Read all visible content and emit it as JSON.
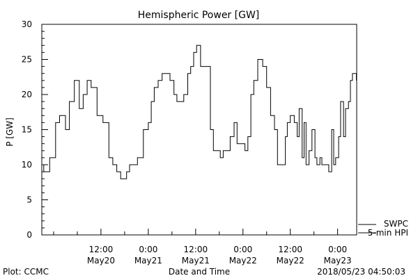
{
  "footer": {
    "plot_credit": "Plot: CCMC",
    "timestamp": "2018/05/23 04:50:03"
  },
  "legend": {
    "source": "SWPC",
    "series": "5-min HPI"
  },
  "colors": {
    "background": "#ffffff",
    "line": "#000000"
  },
  "chart_data": {
    "type": "line",
    "title": "Hemispheric Power [GW]",
    "xlabel": "Date and Time",
    "ylabel": "P [GW]",
    "grid": false,
    "legend_position": "bottom-right",
    "xlim": [
      "2018-05-19 21:00",
      "2018-05-23 04:50"
    ],
    "ylim": [
      0,
      30
    ],
    "y_major_ticks": [
      0,
      5,
      10,
      15,
      20,
      25,
      30
    ],
    "y_minor_step": 1,
    "x_tick_labels": [
      {
        "time": "2018-05-20 12:00",
        "line1": "12:00",
        "line2": "May20"
      },
      {
        "time": "2018-05-21 00:00",
        "line1": "0:00",
        "line2": "May21"
      },
      {
        "time": "2018-05-21 12:00",
        "line1": "12:00",
        "line2": "May21"
      },
      {
        "time": "2018-05-22 00:00",
        "line1": "0:00",
        "line2": "May22"
      },
      {
        "time": "2018-05-22 12:00",
        "line1": "12:00",
        "line2": "May22"
      },
      {
        "time": "2018-05-23 00:00",
        "line1": "0:00",
        "line2": "May23"
      }
    ],
    "x_minor_ticks": [
      "2018-05-20 00:00",
      "2018-05-20 06:00",
      "2018-05-20 18:00",
      "2018-05-21 06:00",
      "2018-05-21 18:00",
      "2018-05-22 06:00",
      "2018-05-22 18:00",
      "2018-05-23 06:00"
    ],
    "series": [
      {
        "name": "5-min HPI",
        "color": "#000000",
        "x": [
          "2018-05-19 21:00",
          "2018-05-19 21:30",
          "2018-05-19 22:00",
          "2018-05-19 23:00",
          "2018-05-20 00:30",
          "2018-05-20 01:30",
          "2018-05-20 03:00",
          "2018-05-20 04:00",
          "2018-05-20 05:15",
          "2018-05-20 06:30",
          "2018-05-20 07:30",
          "2018-05-20 08:30",
          "2018-05-20 09:30",
          "2018-05-20 11:00",
          "2018-05-20 12:30",
          "2018-05-20 14:00",
          "2018-05-20 15:00",
          "2018-05-20 16:00",
          "2018-05-20 17:00",
          "2018-05-20 18:00",
          "2018-05-20 18:30",
          "2018-05-20 19:15",
          "2018-05-20 20:00",
          "2018-05-20 21:15",
          "2018-05-20 22:45",
          "2018-05-21 00:00",
          "2018-05-21 00:45",
          "2018-05-21 01:30",
          "2018-05-21 02:30",
          "2018-05-21 03:30",
          "2018-05-21 04:30",
          "2018-05-21 05:30",
          "2018-05-21 06:30",
          "2018-05-21 07:15",
          "2018-05-21 08:00",
          "2018-05-21 09:00",
          "2018-05-21 10:00",
          "2018-05-21 10:45",
          "2018-05-21 11:30",
          "2018-05-21 12:15",
          "2018-05-21 13:15",
          "2018-05-21 14:15",
          "2018-05-21 15:00",
          "2018-05-21 15:45",
          "2018-05-21 16:30",
          "2018-05-21 17:30",
          "2018-05-21 18:15",
          "2018-05-21 19:00",
          "2018-05-21 20:00",
          "2018-05-21 20:45",
          "2018-05-21 21:45",
          "2018-05-21 22:30",
          "2018-05-21 23:00",
          "2018-05-21 23:45",
          "2018-05-22 00:30",
          "2018-05-22 01:15",
          "2018-05-22 02:00",
          "2018-05-22 02:45",
          "2018-05-22 03:45",
          "2018-05-22 05:00",
          "2018-05-22 06:00",
          "2018-05-22 07:00",
          "2018-05-22 08:00",
          "2018-05-22 08:45",
          "2018-05-22 09:45",
          "2018-05-22 10:45",
          "2018-05-22 11:15",
          "2018-05-22 12:00",
          "2018-05-22 13:00",
          "2018-05-22 13:45",
          "2018-05-22 14:15",
          "2018-05-22 15:00",
          "2018-05-22 15:30",
          "2018-05-22 16:00",
          "2018-05-22 16:45",
          "2018-05-22 17:30",
          "2018-05-22 18:15",
          "2018-05-22 18:45",
          "2018-05-22 19:30",
          "2018-05-22 20:00",
          "2018-05-22 21:00",
          "2018-05-22 21:45",
          "2018-05-22 22:30",
          "2018-05-22 23:00",
          "2018-05-22 23:30",
          "2018-05-23 00:15",
          "2018-05-23 00:45",
          "2018-05-23 01:30",
          "2018-05-23 02:00",
          "2018-05-23 02:45",
          "2018-05-23 03:15",
          "2018-05-23 03:45",
          "2018-05-23 04:20",
          "2018-05-23 04:45"
        ],
        "values": [
          10,
          9,
          9,
          11,
          16,
          17,
          15,
          19,
          22,
          18,
          20,
          22,
          21,
          17,
          16,
          11,
          10,
          9,
          8,
          8,
          9,
          10,
          10,
          11,
          15,
          16,
          19,
          21,
          22,
          23,
          23,
          22,
          20,
          19,
          19,
          20,
          23,
          24,
          26,
          27,
          24,
          24,
          24,
          15,
          12,
          12,
          11,
          12,
          12,
          14,
          16,
          13,
          13,
          13,
          12,
          14,
          20,
          22,
          25,
          24,
          21,
          17,
          15,
          10,
          10,
          14,
          16,
          17,
          16,
          14,
          18,
          11,
          16,
          10,
          12,
          15,
          11,
          10,
          11,
          10,
          10,
          9,
          15,
          10,
          11,
          14,
          19,
          14,
          18,
          19,
          22,
          23,
          23,
          22
        ]
      }
    ]
  }
}
